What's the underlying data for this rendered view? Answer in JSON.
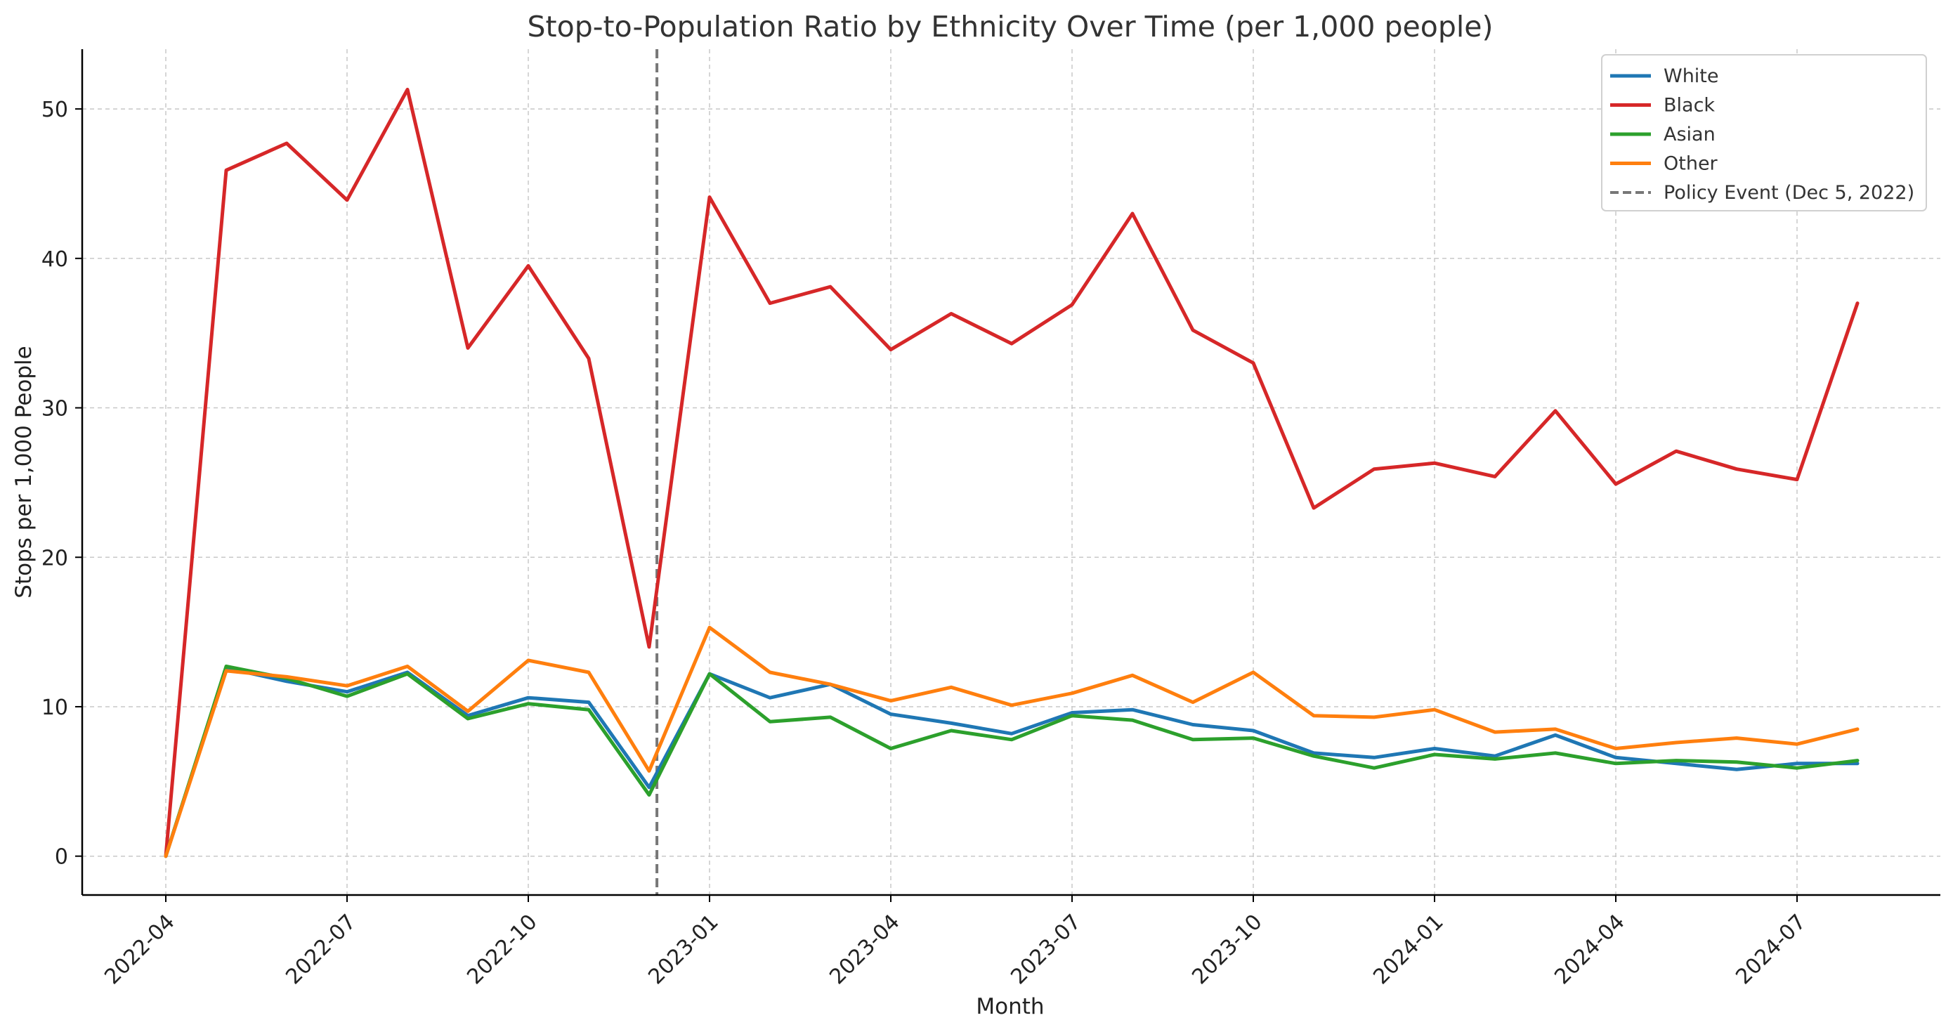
{
  "chart_data": {
    "type": "line",
    "title": "Stop-to-Population Ratio by Ethnicity Over Time (per 1,000 people)",
    "xlabel": "Month",
    "ylabel": "Stops per 1,000 People",
    "x": [
      "2022-04",
      "2022-05",
      "2022-06",
      "2022-07",
      "2022-08",
      "2022-09",
      "2022-10",
      "2022-11",
      "2022-12",
      "2023-01",
      "2023-02",
      "2023-03",
      "2023-04",
      "2023-05",
      "2023-06",
      "2023-07",
      "2023-08",
      "2023-09",
      "2023-10",
      "2023-11",
      "2023-12",
      "2024-01",
      "2024-02",
      "2024-03",
      "2024-04",
      "2024-05",
      "2024-06",
      "2024-07",
      "2024-08"
    ],
    "x_ticks": [
      "2022-04",
      "2022-07",
      "2022-10",
      "2023-01",
      "2023-04",
      "2023-07",
      "2023-10",
      "2024-01",
      "2024-04",
      "2024-07"
    ],
    "y_ticks": [
      0,
      10,
      20,
      30,
      40,
      50
    ],
    "ylim": [
      -2.6,
      54
    ],
    "grid": true,
    "legend_position": "top-right",
    "series": [
      {
        "name": "White",
        "color": "#1f77b4",
        "values": [
          0,
          12.6,
          11.7,
          11.0,
          12.3,
          9.4,
          10.6,
          10.3,
          4.6,
          12.2,
          10.6,
          11.5,
          9.5,
          8.9,
          8.2,
          9.6,
          9.8,
          8.8,
          8.4,
          6.9,
          6.6,
          7.2,
          6.7,
          8.1,
          6.6,
          6.2,
          5.8,
          6.2,
          6.2
        ]
      },
      {
        "name": "Black",
        "color": "#d62728",
        "values": [
          0,
          45.9,
          47.7,
          43.9,
          51.3,
          34.0,
          39.5,
          33.3,
          14.0,
          44.1,
          37.0,
          38.1,
          33.9,
          36.3,
          34.3,
          36.9,
          43.0,
          35.2,
          33.0,
          23.3,
          25.9,
          26.3,
          25.4,
          29.8,
          24.9,
          27.1,
          25.9,
          25.2,
          37.0
        ]
      },
      {
        "name": "Asian",
        "color": "#2ca02c",
        "values": [
          0,
          12.7,
          11.9,
          10.7,
          12.2,
          9.2,
          10.2,
          9.8,
          4.1,
          12.2,
          9.0,
          9.3,
          7.2,
          8.4,
          7.8,
          9.4,
          9.1,
          7.8,
          7.9,
          6.7,
          5.9,
          6.8,
          6.5,
          6.9,
          6.2,
          6.4,
          6.3,
          5.9,
          6.4
        ]
      },
      {
        "name": "Other",
        "color": "#ff7f0e",
        "values": [
          0,
          12.4,
          12.0,
          11.4,
          12.7,
          9.7,
          13.1,
          12.3,
          5.7,
          15.3,
          12.3,
          11.5,
          10.4,
          11.3,
          10.1,
          10.9,
          12.1,
          10.3,
          12.3,
          9.4,
          9.3,
          9.8,
          8.3,
          8.5,
          7.2,
          7.6,
          7.9,
          7.5,
          8.5
        ]
      }
    ],
    "annotations": [
      {
        "type": "vertical-line",
        "x": "2022-12-05",
        "label": "Policy Event (Dec 5, 2022)",
        "style": "dashed",
        "color": "#777777"
      }
    ]
  }
}
